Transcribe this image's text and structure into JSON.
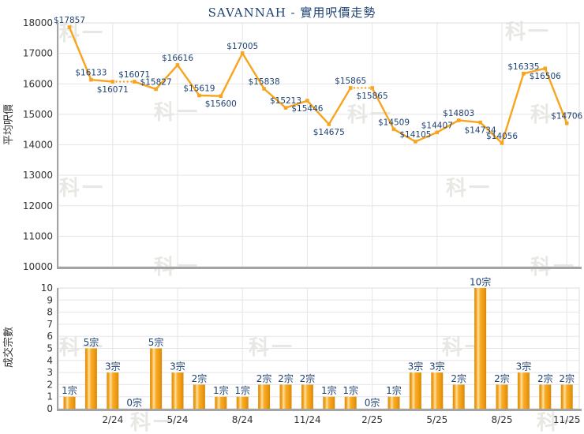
{
  "title": "SAVANNAH - 實用呎價走勢",
  "watermark_text": "科一",
  "colors": {
    "title": "#1E4273",
    "value_label": "#1E4273",
    "line": "#F8A41E",
    "marker": "#F8A41E",
    "bar_gradient": [
      "#DD8E0D",
      "#F2A11C",
      "#FFE2A4",
      "#F9AC28",
      "#EE9B13",
      "#D7880A"
    ],
    "axis_text": "#333333",
    "grid": "#E5E5E5",
    "frame": "#DCDCDC",
    "axis_line": "#A4A4A4",
    "watermark": "#E7E7E3"
  },
  "chart_data": [
    {
      "type": "line",
      "name": "average-price-per-sqft-trend",
      "title": "SAVANNAH - 實用呎價走勢",
      "ylabel": "平均呎價",
      "ylim": [
        10000,
        18000
      ],
      "yticks": [
        "18000",
        "17000",
        "16000",
        "15000",
        "14000",
        "13000",
        "12000",
        "11000",
        "10000"
      ],
      "grid": true,
      "legend_position": "none",
      "values": [
        17857,
        16133,
        16071,
        16071,
        15827,
        16616,
        15619,
        15600,
        17005,
        15838,
        15213,
        15446,
        14675,
        15865,
        15865,
        14509,
        14105,
        14407,
        14803,
        14734,
        14056,
        16335,
        16506,
        14706
      ],
      "point_labels": [
        "$17857",
        "$16133",
        "$16071",
        "$16071",
        "$15827",
        "$16616",
        "$15619",
        "$15600",
        "$17005",
        "$15838",
        "$15213",
        "$15446",
        "$14675",
        "$15865",
        "$15865",
        "$14509",
        "$14105",
        "$14407",
        "$14803",
        "$14734",
        "$14056",
        "$16335",
        "$16506",
        "$14706"
      ],
      "label_side": [
        "above",
        "above",
        "below",
        "above",
        "above",
        "above",
        "above",
        "below",
        "above",
        "above",
        "above",
        "below",
        "below",
        "above",
        "below",
        "above",
        "above",
        "above",
        "above",
        "below",
        "above",
        "above",
        "below",
        "above"
      ],
      "dotted_segments": [
        [
          2,
          3
        ],
        [
          13,
          14
        ]
      ],
      "xtick_indices": [
        2,
        5,
        8,
        11,
        14,
        17,
        20,
        23
      ]
    },
    {
      "type": "bar",
      "name": "transaction-count",
      "ylabel": "成交宗數",
      "ylim": [
        0,
        10
      ],
      "yticks": [
        "10",
        "9",
        "8",
        "7",
        "6",
        "5",
        "4",
        "3",
        "2",
        "1",
        "0"
      ],
      "grid": true,
      "values": [
        1,
        5,
        3,
        0,
        5,
        3,
        2,
        1,
        1,
        2,
        2,
        2,
        1,
        1,
        0,
        1,
        3,
        3,
        2,
        10,
        2,
        3,
        2,
        2
      ],
      "bar_labels": [
        "1宗",
        "5宗",
        "3宗",
        "0宗",
        "5宗",
        "3宗",
        "2宗",
        "1宗",
        "1宗",
        "2宗",
        "2宗",
        "2宗",
        "1宗",
        "1宗",
        "0宗",
        "1宗",
        "3宗",
        "3宗",
        "2宗",
        "10宗",
        "2宗",
        "3宗",
        "2宗",
        "2宗"
      ],
      "xticks": [
        "2/24",
        "5/24",
        "8/24",
        "11/24",
        "2/25",
        "5/25",
        "8/25",
        "11/25"
      ],
      "xtick_indices": [
        2,
        5,
        8,
        11,
        14,
        17,
        20,
        23
      ]
    }
  ]
}
